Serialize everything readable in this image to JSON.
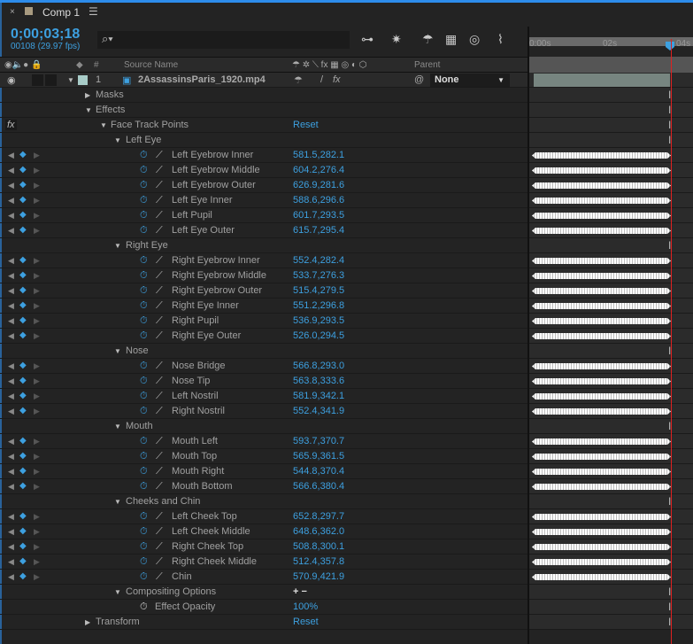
{
  "panel": {
    "close": "×",
    "title": "Comp 1",
    "menu": "☰"
  },
  "time": {
    "timecode": "0;00;03;18",
    "frames": "00108 (29.97 fps)"
  },
  "search": {
    "icon": "search-icon",
    "glyph": "⌕▾"
  },
  "columns": {
    "number": "#",
    "source": "Source Name",
    "parent": "Parent"
  },
  "ruler": {
    "ticks": [
      "0:00s",
      "02s",
      "04s"
    ]
  },
  "layer": {
    "number": "1",
    "name": "2AssassinsParis_1920.mp4",
    "label_color": "#a8ccc8",
    "parent": "None"
  },
  "colors": {
    "accent": "#3da0e0",
    "playhead": "#e02020"
  },
  "rows": [
    {
      "label": "Masks",
      "level": 0,
      "type": "group",
      "open": false
    },
    {
      "label": "Effects",
      "level": 0,
      "type": "group",
      "open": true
    },
    {
      "label": "Face Track Points",
      "level": 1,
      "type": "group",
      "open": true,
      "value": "Reset",
      "fx": true
    },
    {
      "label": "Left Eye",
      "level": 2,
      "type": "group",
      "open": true
    },
    {
      "label": "Left Eyebrow Inner",
      "type": "prop",
      "value": "581.5,282.1"
    },
    {
      "label": "Left Eyebrow Middle",
      "type": "prop",
      "value": "604.2,276.4"
    },
    {
      "label": "Left Eyebrow Outer",
      "type": "prop",
      "value": "626.9,281.6"
    },
    {
      "label": "Left Eye Inner",
      "type": "prop",
      "value": "588.6,296.6"
    },
    {
      "label": "Left Pupil",
      "type": "prop",
      "value": "601.7,293.5"
    },
    {
      "label": "Left Eye Outer",
      "type": "prop",
      "value": "615.7,295.4"
    },
    {
      "label": "Right Eye",
      "level": 2,
      "type": "group",
      "open": true
    },
    {
      "label": "Right Eyebrow Inner",
      "type": "prop",
      "value": "552.4,282.4"
    },
    {
      "label": "Right Eyebrow Middle",
      "type": "prop",
      "value": "533.7,276.3"
    },
    {
      "label": "Right Eyebrow Outer",
      "type": "prop",
      "value": "515.4,279.5"
    },
    {
      "label": "Right Eye Inner",
      "type": "prop",
      "value": "551.2,296.8"
    },
    {
      "label": "Right Pupil",
      "type": "prop",
      "value": "536.9,293.5"
    },
    {
      "label": "Right Eye Outer",
      "type": "prop",
      "value": "526.0,294.5"
    },
    {
      "label": "Nose",
      "level": 2,
      "type": "group",
      "open": true
    },
    {
      "label": "Nose Bridge",
      "type": "prop",
      "value": "566.8,293.0"
    },
    {
      "label": "Nose Tip",
      "type": "prop",
      "value": "563.8,333.6"
    },
    {
      "label": "Left Nostril",
      "type": "prop",
      "value": "581.9,342.1"
    },
    {
      "label": "Right Nostril",
      "type": "prop",
      "value": "552.4,341.9"
    },
    {
      "label": "Mouth",
      "level": 2,
      "type": "group",
      "open": true
    },
    {
      "label": "Mouth Left",
      "type": "prop",
      "value": "593.7,370.7"
    },
    {
      "label": "Mouth Top",
      "type": "prop",
      "value": "565.9,361.5"
    },
    {
      "label": "Mouth Right",
      "type": "prop",
      "value": "544.8,370.4"
    },
    {
      "label": "Mouth Bottom",
      "type": "prop",
      "value": "566.6,380.4"
    },
    {
      "label": "Cheeks and Chin",
      "level": 2,
      "type": "group",
      "open": true
    },
    {
      "label": "Left Cheek Top",
      "type": "prop",
      "value": "652.8,297.7"
    },
    {
      "label": "Left Cheek Middle",
      "type": "prop",
      "value": "648.6,362.0"
    },
    {
      "label": "Right Cheek Top",
      "type": "prop",
      "value": "508.8,300.1"
    },
    {
      "label": "Right Cheek Middle",
      "type": "prop",
      "value": "512.4,357.8"
    },
    {
      "label": "Chin",
      "type": "prop",
      "value": "570.9,421.9"
    },
    {
      "label": "Compositing Options",
      "level": 2,
      "type": "group",
      "open": true,
      "value": "+ −"
    },
    {
      "label": "Effect Opacity",
      "type": "static",
      "value": "100%"
    },
    {
      "label": "Transform",
      "level": 0,
      "type": "group",
      "open": false,
      "value": "Reset"
    }
  ]
}
